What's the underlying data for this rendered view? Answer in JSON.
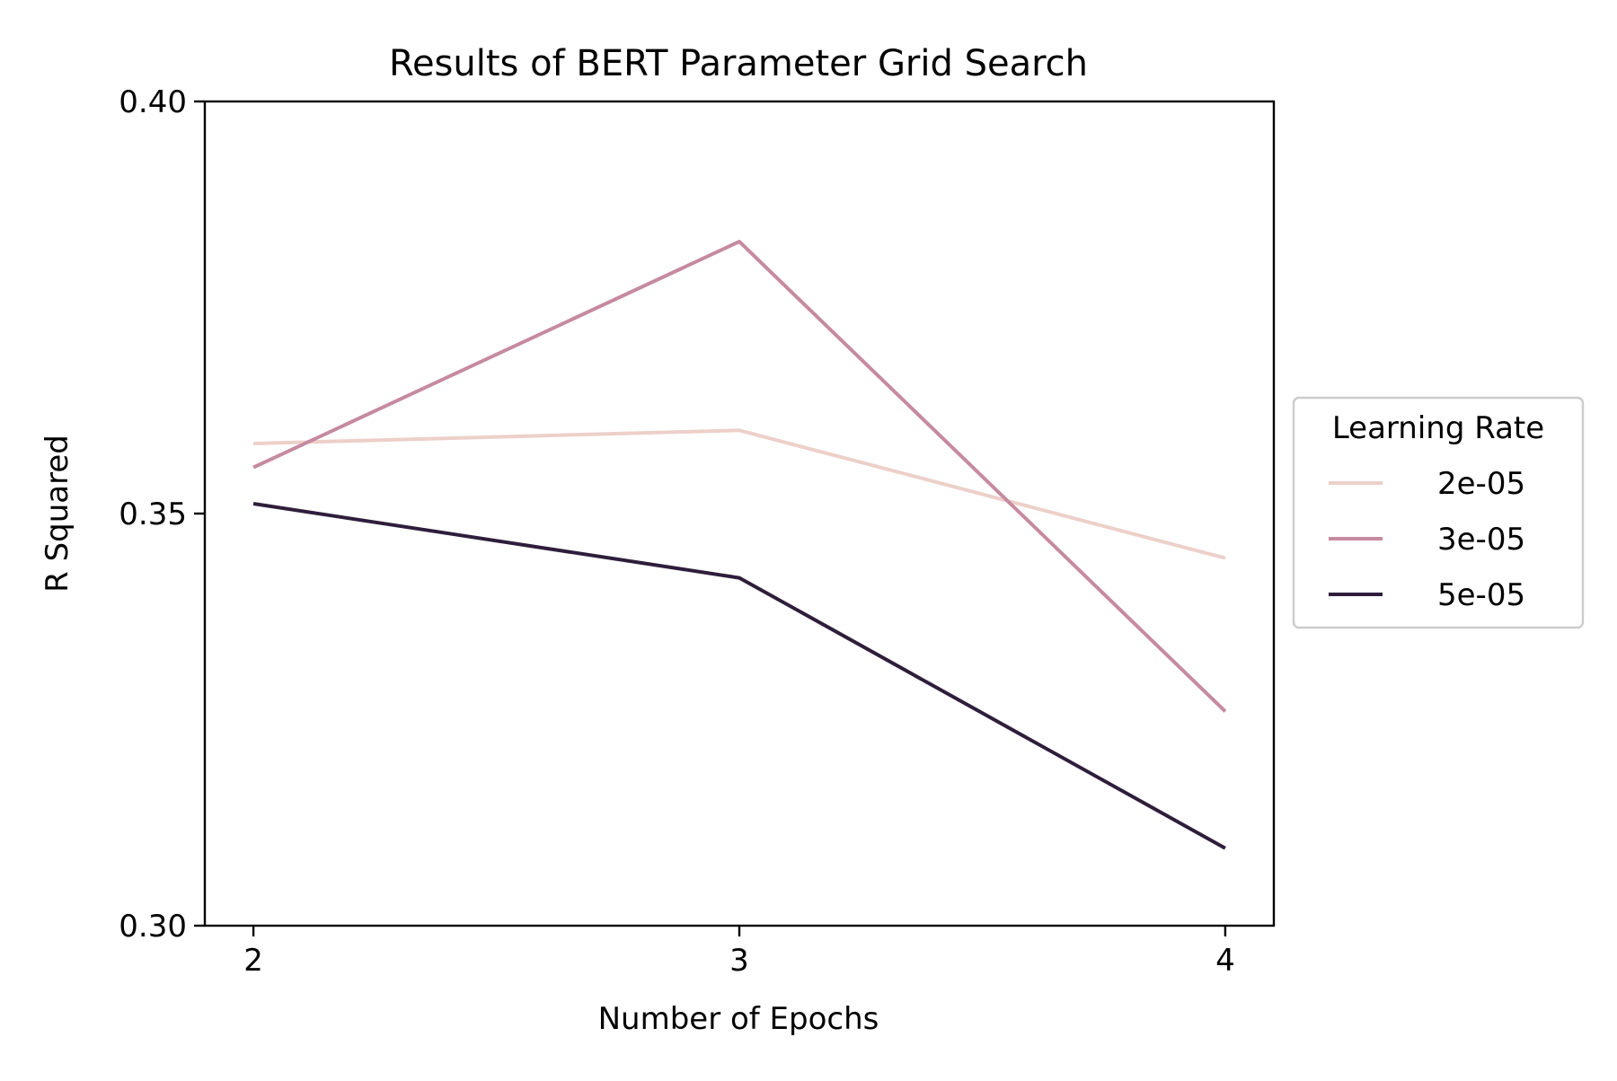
{
  "chart_data": {
    "type": "line",
    "title": "Results of BERT Parameter Grid Search",
    "xlabel": "Number of Epochs",
    "ylabel": "R Squared",
    "x": [
      2,
      3,
      4
    ],
    "x_ticks": [
      "2",
      "3",
      "4"
    ],
    "xlim": [
      1.9,
      4.1
    ],
    "ylim": [
      0.3,
      0.4
    ],
    "y_ticks": [
      "0.30",
      "0.35",
      "0.40"
    ],
    "grid": false,
    "legend": {
      "title": "Learning Rate",
      "placement": "right"
    },
    "series": [
      {
        "name": "2e-05",
        "color": "#ecd0c9",
        "values": [
          0.3585,
          0.3601,
          0.3446
        ]
      },
      {
        "name": "3e-05",
        "color": "#c68aa0",
        "values": [
          0.3556,
          0.383,
          0.326
        ]
      },
      {
        "name": "5e-05",
        "color": "#2e1e3b",
        "values": [
          0.3512,
          0.3422,
          0.3094
        ]
      }
    ]
  }
}
